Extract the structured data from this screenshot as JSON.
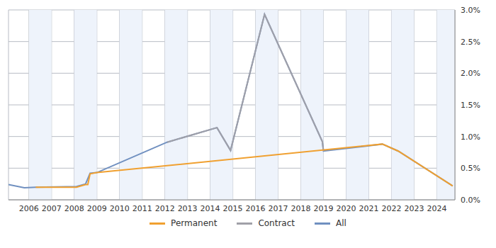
{
  "chart_data": {
    "type": "line",
    "xlim": [
      2005.1,
      2024.8
    ],
    "xticks": [
      2006,
      2007,
      2008,
      2009,
      2010,
      2011,
      2012,
      2013,
      2014,
      2015,
      2016,
      2017,
      2018,
      2019,
      2020,
      2021,
      2022,
      2023,
      2024
    ],
    "ylim": [
      0,
      3
    ],
    "yticks": [
      {
        "value": 0,
        "label": "0.0%"
      },
      {
        "value": 0.5,
        "label": "0.5%"
      },
      {
        "value": 1,
        "label": "1.0%"
      },
      {
        "value": 1.5,
        "label": "1.5%"
      },
      {
        "value": 2,
        "label": "2.0%"
      },
      {
        "value": 2.5,
        "label": "2.5%"
      },
      {
        "value": 3,
        "label": "3.0%"
      }
    ],
    "grid": true,
    "legend": "bottom",
    "series": [
      {
        "name": "Permanent",
        "color": "#f0a030",
        "x": [
          2006.3,
          2008.1,
          2008.5,
          2008.6,
          2008.7,
          2009,
          2021.6,
          2022.3,
          2024.7
        ],
        "values": [
          0.2,
          0.2,
          0.24,
          0.24,
          0.41,
          0.43,
          0.88,
          0.77,
          0.22
        ]
      },
      {
        "name": "Contract",
        "color": "#a0a0a8",
        "x": [
          2012.1,
          2014.3,
          2014.9,
          2016.4,
          2018.95,
          2019
        ],
        "values": [
          0.91,
          1.14,
          0.78,
          2.93,
          0.92,
          0.77
        ]
      },
      {
        "name": "All",
        "color": "#7090c0",
        "x": [
          2005.1,
          2005.8,
          2006.3,
          2008.1,
          2008.5,
          2008.7,
          2009,
          2012.1,
          2014.3,
          2014.9,
          2016.4,
          2018.95,
          2019,
          2021.6,
          2022.3,
          2024.7
        ],
        "values": [
          0.24,
          0.19,
          0.2,
          0.21,
          0.25,
          0.42,
          0.43,
          0.91,
          1.14,
          0.78,
          2.93,
          0.92,
          0.77,
          0.88,
          0.77,
          0.22
        ]
      }
    ]
  }
}
